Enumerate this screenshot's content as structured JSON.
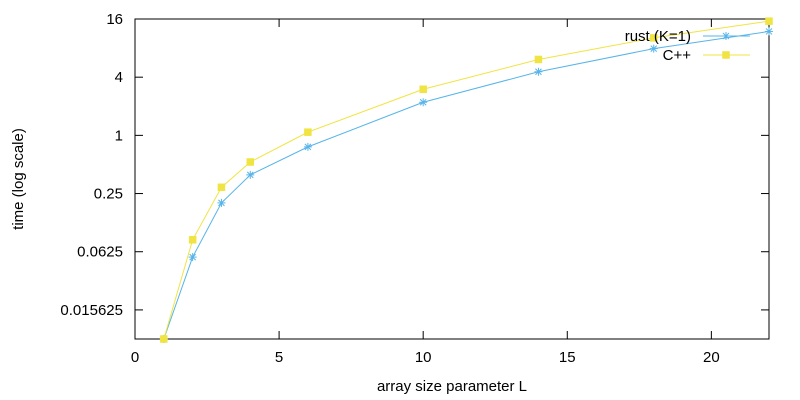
{
  "chart_data": {
    "type": "line",
    "title": "",
    "xlabel": "array size parameter L",
    "ylabel": "time (log scale)",
    "xlim": [
      0,
      22
    ],
    "ylim": [
      0.0078125,
      16
    ],
    "y_scale": "log2",
    "x_ticks": [
      0,
      5,
      10,
      15,
      20
    ],
    "y_ticks": [
      0.015625,
      0.0625,
      0.25,
      1,
      4,
      16
    ],
    "y_tick_labels": [
      "0.015625",
      "0.0625",
      "0.25",
      "1",
      "4",
      "16"
    ],
    "grid": false,
    "legend_position": "top-right",
    "series": [
      {
        "name": "rust (K=1)",
        "color": "#56b4e9",
        "marker": "asterisk",
        "x": [
          1,
          2,
          3,
          4,
          6,
          10,
          14,
          18,
          22
        ],
        "y": [
          0.0078125,
          0.055,
          0.2,
          0.39,
          0.76,
          2.2,
          4.55,
          7.9,
          11.9
        ]
      },
      {
        "name": "C++",
        "color": "#f0e442",
        "marker": "square",
        "x": [
          1,
          2,
          3,
          4,
          6,
          10,
          14,
          18,
          22
        ],
        "y": [
          0.0078125,
          0.083,
          0.29,
          0.53,
          1.08,
          3.0,
          6.1,
          10.2,
          15.2
        ]
      }
    ]
  }
}
